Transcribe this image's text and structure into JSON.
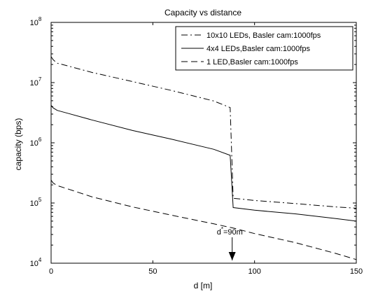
{
  "chart_data": {
    "type": "line",
    "title": "Capacity vs distance",
    "xlabel": "d [m]",
    "ylabel": "capacity (bps)",
    "xlim": [
      0,
      150
    ],
    "ylim": [
      10000,
      100000000
    ],
    "yscale": "log",
    "grid": false,
    "legend_position": "top-right",
    "x_ticks": [
      0,
      50,
      100,
      150
    ],
    "y_ticks": [
      {
        "value": 10000,
        "base": "10",
        "exp": "4"
      },
      {
        "value": 100000,
        "base": "10",
        "exp": "5"
      },
      {
        "value": 1000000,
        "base": "10",
        "exp": "6"
      },
      {
        "value": 10000000,
        "base": "10",
        "exp": "7"
      },
      {
        "value": 100000000,
        "base": "10",
        "exp": "8"
      }
    ],
    "series": [
      {
        "name": "10x10 LEDs, Basler cam:1000fps",
        "dash": "dashdot",
        "points": [
          [
            0,
            27000000
          ],
          [
            1,
            24000000
          ],
          [
            3,
            21000000
          ],
          [
            8,
            19000000
          ],
          [
            20,
            14800000
          ],
          [
            40,
            10400000
          ],
          [
            60,
            7300000
          ],
          [
            80,
            4950000
          ],
          [
            88,
            3850000
          ],
          [
            89.5,
            120000
          ],
          [
            100,
            110000
          ],
          [
            120,
            98000
          ],
          [
            140,
            86000
          ],
          [
            150,
            82000
          ]
        ]
      },
      {
        "name": "4x4 LEDs,Basler cam:1000fps",
        "dash": "solid",
        "points": [
          [
            0,
            4200000
          ],
          [
            1,
            3800000
          ],
          [
            3,
            3450000
          ],
          [
            8,
            3100000
          ],
          [
            20,
            2400000
          ],
          [
            40,
            1600000
          ],
          [
            60,
            1130000
          ],
          [
            80,
            780000
          ],
          [
            88,
            620000
          ],
          [
            89.5,
            84000
          ],
          [
            100,
            76000
          ],
          [
            120,
            66000
          ],
          [
            140,
            55000
          ],
          [
            150,
            50000
          ]
        ]
      },
      {
        "name": "1 LED,Basler cam:1000fps",
        "dash": "dashed",
        "points": [
          [
            0,
            240000
          ],
          [
            1,
            215000
          ],
          [
            3,
            195000
          ],
          [
            8,
            172000
          ],
          [
            20,
            127000
          ],
          [
            40,
            86000
          ],
          [
            60,
            62000
          ],
          [
            80,
            45000
          ],
          [
            90,
            38000
          ],
          [
            100,
            31000
          ],
          [
            120,
            22000
          ],
          [
            140,
            14500
          ],
          [
            150,
            11500
          ]
        ]
      }
    ],
    "annotation": {
      "text_main": "d",
      "text_sup": "*",
      "text_rest": "=90m",
      "x": 89,
      "arrow_from_y": 30000,
      "arrow_to_y": 10000
    }
  }
}
